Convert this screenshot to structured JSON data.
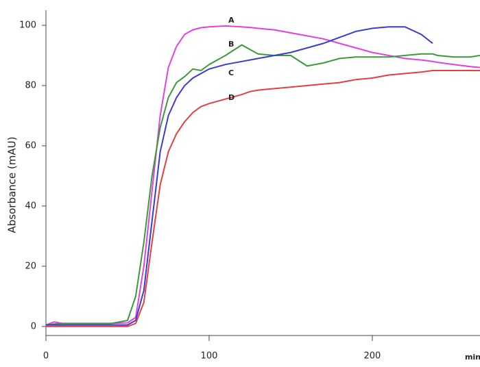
{
  "chart_data": {
    "type": "line",
    "y_label": "Absorbance (mAU)",
    "x_label": "min.",
    "x": [
      0,
      5,
      10,
      20,
      30,
      40,
      50,
      55,
      60,
      65,
      70,
      75,
      80,
      85,
      90,
      95,
      100,
      110,
      120,
      125,
      130,
      140,
      150,
      160,
      170,
      180,
      190,
      200,
      210,
      220,
      230,
      237,
      240,
      250,
      260,
      266
    ],
    "series": [
      {
        "name": "A",
        "color": "#e040e0",
        "values": [
          0.5,
          1.5,
          1,
          1,
          1,
          1,
          1.2,
          3,
          20,
          45,
          70,
          86,
          93,
          97,
          98.5,
          99.2,
          99.5,
          99.8,
          99.5,
          99.3,
          99,
          98.5,
          97.5,
          96.5,
          95.5,
          94,
          92.5,
          91,
          90,
          89,
          88.5,
          88,
          87.7,
          87,
          86.3,
          86
        ]
      },
      {
        "name": "B",
        "color": "#3a9a3a",
        "values": [
          0.5,
          0.8,
          1,
          1,
          1,
          1,
          2,
          10,
          28,
          50,
          66,
          76,
          81,
          83,
          85.5,
          85,
          87,
          90,
          93.5,
          92,
          90.5,
          90,
          90,
          86.5,
          87.5,
          89,
          89.5,
          89.5,
          89.5,
          90,
          90.5,
          90.5,
          90,
          89.5,
          89.5,
          90
        ]
      },
      {
        "name": "C",
        "color": "#3a3ad0",
        "values": [
          0.5,
          0.5,
          0.5,
          0.5,
          0.5,
          0.5,
          0.5,
          2,
          12,
          35,
          58,
          70,
          76,
          80,
          82.5,
          84,
          85.5,
          87,
          88,
          88.5,
          89,
          90,
          91,
          92.5,
          94,
          96,
          98,
          99,
          99.5,
          99.5,
          97,
          94,
          null,
          null,
          null,
          null
        ]
      },
      {
        "name": "D",
        "color": "#e04040",
        "values": [
          0,
          0,
          0,
          0,
          0,
          0,
          0,
          1,
          8,
          28,
          47,
          58,
          64,
          68,
          71,
          73,
          74,
          75.5,
          77,
          78,
          78.5,
          79,
          79.5,
          80,
          80.5,
          81,
          82,
          82.5,
          83.5,
          84,
          84.5,
          85,
          85,
          85,
          85,
          85
        ]
      }
    ],
    "xlim": [
      0,
      266
    ],
    "xticks": [
      0,
      100,
      200
    ],
    "ylim": [
      -3,
      105
    ],
    "yticks": [
      0,
      20,
      40,
      60,
      80,
      100
    ]
  }
}
